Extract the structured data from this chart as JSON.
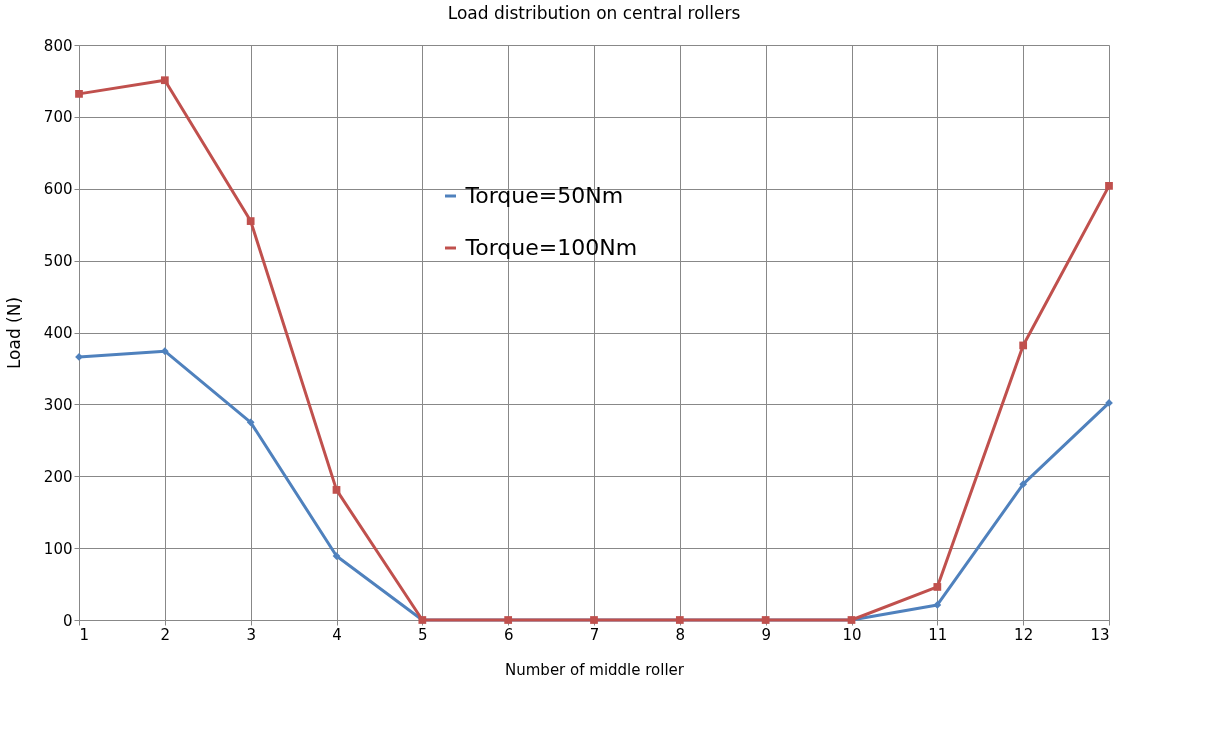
{
  "chart_data": {
    "type": "line",
    "title": "Load distribution on central rollers",
    "xlabel": "Number of middle roller",
    "ylabel": "Load (N)",
    "x": [
      1,
      2,
      3,
      4,
      5,
      6,
      7,
      8,
      9,
      10,
      11,
      12,
      13
    ],
    "series": [
      {
        "name": "Torque=50Nm",
        "color": "#4f81bd",
        "marker": "diamond",
        "values": [
          366,
          374,
          275,
          89,
          0,
          0,
          0,
          0,
          0,
          0,
          21,
          189,
          302
        ]
      },
      {
        "name": "Torque=100Nm",
        "color": "#c0504d",
        "marker": "square",
        "values": [
          732,
          751,
          555,
          181,
          0,
          0,
          0,
          0,
          0,
          0,
          46,
          382,
          604
        ]
      }
    ],
    "xlim": [
      1,
      13
    ],
    "xticks": [
      1,
      2,
      3,
      4,
      5,
      6,
      7,
      8,
      9,
      10,
      11,
      12,
      13
    ],
    "ylim": [
      0,
      800
    ],
    "yticks": [
      0,
      100,
      200,
      300,
      400,
      500,
      600,
      700,
      800
    ],
    "grid": true,
    "legend": "top",
    "line_style": "solid"
  }
}
